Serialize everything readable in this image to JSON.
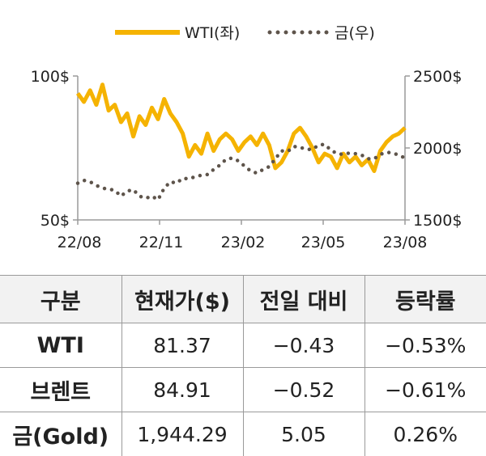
{
  "legend": {
    "wti_label": "WTI(좌)",
    "gold_label": "금(우)"
  },
  "chart_data": {
    "type": "line",
    "x_ticks": [
      "22/08",
      "22/11",
      "23/02",
      "23/05",
      "23/08"
    ],
    "left_axis": {
      "ticks": [
        "100$",
        "50$"
      ],
      "ylim": [
        50,
        100
      ]
    },
    "right_axis": {
      "ticks": [
        "2500$",
        "2000$",
        "1500$"
      ],
      "ylim": [
        1500,
        2500
      ]
    },
    "grid": false,
    "legend_position": "top",
    "colors": {
      "wti": "#f5b301",
      "gold": "#5e544b"
    },
    "series": [
      {
        "name": "WTI(좌)",
        "axis": "left",
        "x": [
          "2022-08-01",
          "2022-08-08",
          "2022-08-15",
          "2022-08-22",
          "2022-08-29",
          "2022-09-05",
          "2022-09-12",
          "2022-09-19",
          "2022-09-26",
          "2022-10-03",
          "2022-10-10",
          "2022-10-17",
          "2022-10-24",
          "2022-10-31",
          "2022-11-07",
          "2022-11-14",
          "2022-11-21",
          "2022-11-28",
          "2022-12-05",
          "2022-12-12",
          "2022-12-19",
          "2022-12-26",
          "2023-01-02",
          "2023-01-09",
          "2023-01-16",
          "2023-01-23",
          "2023-01-30",
          "2023-02-06",
          "2023-02-13",
          "2023-02-20",
          "2023-02-27",
          "2023-03-06",
          "2023-03-13",
          "2023-03-20",
          "2023-03-27",
          "2023-04-03",
          "2023-04-10",
          "2023-04-17",
          "2023-04-24",
          "2023-05-01",
          "2023-05-08",
          "2023-05-15",
          "2023-05-22",
          "2023-05-29",
          "2023-06-05",
          "2023-06-12",
          "2023-06-19",
          "2023-06-26",
          "2023-07-03",
          "2023-07-10",
          "2023-07-17",
          "2023-07-24",
          "2023-07-31",
          "2023-08-07"
        ],
        "values": [
          94,
          91,
          95,
          90,
          97,
          88,
          90,
          84,
          87,
          79,
          86,
          83,
          89,
          85,
          92,
          87,
          84,
          80,
          72,
          76,
          73,
          80,
          74,
          78,
          80,
          78,
          74,
          77,
          79,
          76,
          80,
          76,
          68,
          70,
          74,
          80,
          82,
          79,
          75,
          70,
          73,
          72,
          68,
          73,
          70,
          72,
          69,
          71,
          67,
          74,
          77,
          79,
          80,
          82
        ]
      },
      {
        "name": "금(우)",
        "axis": "right",
        "x": [
          "2022-08-01",
          "2022-08-08",
          "2022-08-15",
          "2022-08-22",
          "2022-08-29",
          "2022-09-05",
          "2022-09-12",
          "2022-09-19",
          "2022-09-26",
          "2022-10-03",
          "2022-10-10",
          "2022-10-17",
          "2022-10-24",
          "2022-10-31",
          "2022-11-07",
          "2022-11-14",
          "2022-11-21",
          "2022-11-28",
          "2022-12-05",
          "2022-12-12",
          "2022-12-19",
          "2022-12-26",
          "2023-01-02",
          "2023-01-09",
          "2023-01-16",
          "2023-01-23",
          "2023-01-30",
          "2023-02-06",
          "2023-02-13",
          "2023-02-20",
          "2023-02-27",
          "2023-03-06",
          "2023-03-13",
          "2023-03-20",
          "2023-03-27",
          "2023-04-03",
          "2023-04-10",
          "2023-04-17",
          "2023-04-24",
          "2023-05-01",
          "2023-05-08",
          "2023-05-15",
          "2023-05-22",
          "2023-05-29",
          "2023-06-05",
          "2023-06-12",
          "2023-06-19",
          "2023-06-26",
          "2023-07-03",
          "2023-07-10",
          "2023-07-17",
          "2023-07-24",
          "2023-07-31",
          "2023-08-07"
        ],
        "values": [
          1755,
          1775,
          1765,
          1740,
          1720,
          1715,
          1705,
          1665,
          1700,
          1710,
          1665,
          1650,
          1665,
          1640,
          1720,
          1765,
          1755,
          1790,
          1785,
          1800,
          1810,
          1815,
          1850,
          1880,
          1920,
          1930,
          1910,
          1875,
          1840,
          1825,
          1850,
          1870,
          1925,
          1980,
          1975,
          2010,
          2005,
          1990,
          1990,
          2020,
          2025,
          1985,
          1960,
          1955,
          1965,
          1960,
          1950,
          1925,
          1925,
          1955,
          1970,
          1965,
          1950,
          1930
        ]
      }
    ]
  },
  "table": {
    "headers": [
      "구분",
      "현재가($)",
      "전일 대비",
      "등락률"
    ],
    "rows": [
      [
        "WTI",
        "81.37",
        "−0.43",
        "−0.53%"
      ],
      [
        "브렌트",
        "84.91",
        "−0.52",
        "−0.61%"
      ],
      [
        "금(Gold)",
        "1,944.29",
        "5.05",
        "0.26%"
      ]
    ]
  }
}
